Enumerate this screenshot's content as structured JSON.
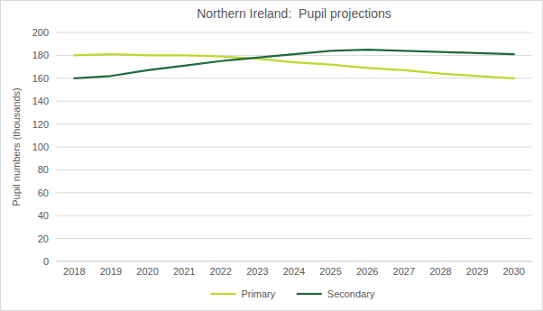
{
  "chart_data": {
    "type": "line",
    "title": "Northern Ireland:  Pupil projections",
    "y_label": "Pupil numbers (thousands)",
    "categories": [
      "2018",
      "2019",
      "2020",
      "2021",
      "2022",
      "2023",
      "2024",
      "2025",
      "2026",
      "2027",
      "2028",
      "2029",
      "2030"
    ],
    "series": [
      {
        "name": "Primary",
        "color": "#bfd730",
        "values": [
          180,
          181,
          180,
          180,
          179,
          177,
          174,
          172,
          169,
          167,
          164,
          162,
          160
        ]
      },
      {
        "name": "Secondary",
        "color": "#1d6a3f",
        "values": [
          160,
          162,
          167,
          171,
          175,
          178,
          181,
          184,
          185,
          184,
          183,
          182,
          181
        ]
      }
    ],
    "ylim": [
      0,
      200
    ],
    "yticks": [
      0,
      20,
      40,
      60,
      80,
      100,
      120,
      140,
      160,
      180,
      200
    ],
    "grid": true,
    "legend": "bottom"
  }
}
